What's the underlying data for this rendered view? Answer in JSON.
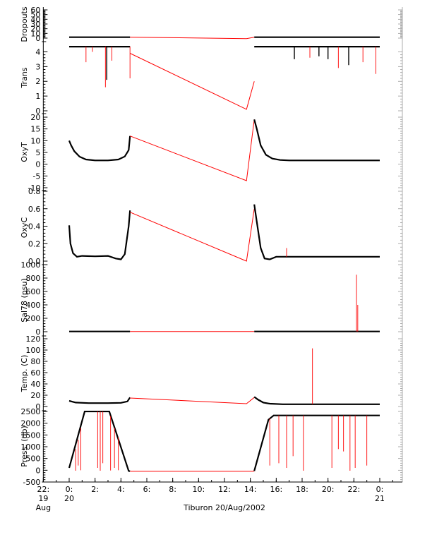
{
  "chart_data": {
    "type": "line",
    "xlabel": "Tiburon 20/Aug/2002",
    "x_range_hours": [
      -2,
      24
    ],
    "x_ticks": [
      {
        "h": -2,
        "lines": [
          "22:",
          "19",
          "Aug"
        ]
      },
      {
        "h": 0,
        "lines": [
          "0:",
          "20"
        ]
      },
      {
        "h": 2,
        "lines": [
          "2:"
        ]
      },
      {
        "h": 4,
        "lines": [
          "4:"
        ]
      },
      {
        "h": 6,
        "lines": [
          "6:"
        ]
      },
      {
        "h": 8,
        "lines": [
          "8:"
        ]
      },
      {
        "h": 10,
        "lines": [
          "10:"
        ]
      },
      {
        "h": 12,
        "lines": [
          "12:"
        ]
      },
      {
        "h": 14,
        "lines": [
          "14:"
        ]
      },
      {
        "h": 16,
        "lines": [
          "16:"
        ]
      },
      {
        "h": 18,
        "lines": [
          "18:"
        ]
      },
      {
        "h": 20,
        "lines": [
          "20:"
        ]
      },
      {
        "h": 22,
        "lines": [
          "22:"
        ]
      },
      {
        "h": 24,
        "lines": [
          "0:",
          "21"
        ]
      }
    ],
    "colors": {
      "data": "#000000",
      "gap": "#ff0000"
    },
    "panels": [
      {
        "ylabel": "Dropouts",
        "ylim": [
          0,
          60
        ],
        "yticks": [
          "60",
          "50",
          "40",
          "30",
          "20",
          "10",
          "0"
        ],
        "ytick_values": [
          60,
          50,
          40,
          30,
          20,
          10,
          0
        ],
        "segments": [
          {
            "color": "black",
            "points": [
              [
                0,
                2
              ],
              [
                4.7,
                2
              ]
            ]
          },
          {
            "color": "red",
            "points": [
              [
                4.7,
                2
              ],
              [
                13.7,
                -1
              ],
              [
                14.3,
                2
              ]
            ]
          },
          {
            "color": "black",
            "points": [
              [
                14.3,
                2
              ],
              [
                24,
                2
              ]
            ]
          }
        ],
        "spikes": []
      },
      {
        "ylabel": "Trans",
        "ylim": [
          0,
          4.5
        ],
        "yticks": [
          "4",
          "3",
          "2",
          "1",
          "0"
        ],
        "ytick_values": [
          4,
          3,
          2,
          1,
          0
        ],
        "segments": [
          {
            "color": "black",
            "points": [
              [
                0,
                4.35
              ],
              [
                4.7,
                4.35
              ]
            ]
          },
          {
            "color": "red",
            "points": [
              [
                4.7,
                3.9
              ],
              [
                13.7,
                0.1
              ],
              [
                14.3,
                2.0
              ]
            ]
          },
          {
            "color": "black",
            "points": [
              [
                14.3,
                4.35
              ],
              [
                24,
                4.35
              ]
            ]
          }
        ],
        "spikes": [
          {
            "x": 1.3,
            "y0": 4.35,
            "y1": 3.3,
            "color": "red"
          },
          {
            "x": 1.8,
            "y0": 4.35,
            "y1": 4.0,
            "color": "red"
          },
          {
            "x": 2.8,
            "y0": 4.35,
            "y1": 1.6,
            "color": "red"
          },
          {
            "x": 2.9,
            "y0": 4.35,
            "y1": 2.1,
            "color": "black"
          },
          {
            "x": 3.3,
            "y0": 4.35,
            "y1": 3.4,
            "color": "red"
          },
          {
            "x": 4.7,
            "y0": 4.35,
            "y1": 2.2,
            "color": "red"
          },
          {
            "x": 17.4,
            "y0": 4.35,
            "y1": 3.5,
            "color": "black"
          },
          {
            "x": 18.6,
            "y0": 4.35,
            "y1": 3.6,
            "color": "red"
          },
          {
            "x": 19.3,
            "y0": 4.35,
            "y1": 3.7,
            "color": "black"
          },
          {
            "x": 20.0,
            "y0": 4.35,
            "y1": 3.5,
            "color": "black"
          },
          {
            "x": 20.8,
            "y0": 4.35,
            "y1": 2.9,
            "color": "red"
          },
          {
            "x": 21.6,
            "y0": 4.35,
            "y1": 3.1,
            "color": "black"
          },
          {
            "x": 22.7,
            "y0": 4.35,
            "y1": 3.3,
            "color": "red"
          },
          {
            "x": 23.7,
            "y0": 4.35,
            "y1": 2.5,
            "color": "red"
          }
        ]
      },
      {
        "ylabel": "OxyT",
        "ylim": [
          -10,
          20
        ],
        "yticks": [
          "20",
          "15",
          "10",
          "5",
          "0",
          "-5",
          "-10"
        ],
        "ytick_values": [
          20,
          15,
          10,
          5,
          0,
          -5,
          -10
        ],
        "segments": [
          {
            "color": "black",
            "points": [
              [
                0,
                10
              ],
              [
                0.15,
                8
              ],
              [
                0.4,
                5.5
              ],
              [
                0.8,
                3.2
              ],
              [
                1.3,
                2
              ],
              [
                2,
                1.6
              ],
              [
                3,
                1.6
              ],
              [
                3.8,
                2
              ],
              [
                4.3,
                3.3
              ],
              [
                4.6,
                6
              ],
              [
                4.7,
                12
              ]
            ]
          },
          {
            "color": "red",
            "points": [
              [
                4.7,
                12
              ],
              [
                13.7,
                -7
              ],
              [
                14.3,
                19
              ]
            ]
          },
          {
            "color": "black",
            "points": [
              [
                14.3,
                19
              ],
              [
                14.5,
                15
              ],
              [
                14.8,
                8
              ],
              [
                15.2,
                4
              ],
              [
                15.7,
                2.4
              ],
              [
                16.3,
                1.8
              ],
              [
                17,
                1.6
              ],
              [
                24,
                1.6
              ]
            ]
          }
        ],
        "spikes": []
      },
      {
        "ylabel": "OxyC",
        "ylim": [
          0,
          0.8
        ],
        "yticks": [
          "0.8",
          "0.6",
          "0.4",
          "0.2",
          "0.0"
        ],
        "ytick_values": [
          0.8,
          0.6,
          0.4,
          0.2,
          0.0
        ],
        "segments": [
          {
            "color": "black",
            "points": [
              [
                0,
                0.41
              ],
              [
                0.1,
                0.2
              ],
              [
                0.3,
                0.09
              ],
              [
                0.6,
                0.05
              ],
              [
                1,
                0.06
              ],
              [
                2,
                0.055
              ],
              [
                3,
                0.06
              ],
              [
                3.6,
                0.03
              ],
              [
                4,
                0.02
              ],
              [
                4.3,
                0.08
              ],
              [
                4.6,
                0.4
              ],
              [
                4.7,
                0.58
              ]
            ]
          },
          {
            "color": "red",
            "points": [
              [
                4.7,
                0.56
              ],
              [
                13.7,
                0.0
              ],
              [
                14.3,
                0.6
              ]
            ]
          },
          {
            "color": "black",
            "points": [
              [
                14.3,
                0.65
              ],
              [
                14.5,
                0.45
              ],
              [
                14.8,
                0.15
              ],
              [
                15.1,
                0.03
              ],
              [
                15.5,
                0.02
              ],
              [
                16,
                0.05
              ],
              [
                24,
                0.05
              ]
            ]
          }
        ],
        "spikes": [
          {
            "x": 16.8,
            "y0": 0.05,
            "y1": 0.15,
            "color": "red"
          }
        ]
      },
      {
        "ylabel": "Sal78 (psu)",
        "ylim": [
          0,
          1000
        ],
        "yticks": [
          "1000",
          "800",
          "600",
          "400",
          "200",
          "0"
        ],
        "ytick_values": [
          1000,
          800,
          600,
          400,
          200,
          0
        ],
        "segments": [
          {
            "color": "black",
            "points": [
              [
                0,
                3
              ],
              [
                4.7,
                3
              ]
            ]
          },
          {
            "color": "red",
            "points": [
              [
                4.7,
                3
              ],
              [
                14.3,
                3
              ]
            ]
          },
          {
            "color": "black",
            "points": [
              [
                14.3,
                3
              ],
              [
                24,
                3
              ]
            ]
          }
        ],
        "spikes": [
          {
            "x": 22.2,
            "y0": 3,
            "y1": 850,
            "color": "red"
          },
          {
            "x": 22.3,
            "y0": 3,
            "y1": 400,
            "color": "red"
          }
        ]
      },
      {
        "ylabel": "Temp. (C)",
        "ylim": [
          0,
          120
        ],
        "yticks": [
          "120",
          "100",
          "80",
          "60",
          "40",
          "20",
          "0"
        ],
        "ytick_values": [
          120,
          100,
          80,
          60,
          40,
          20,
          0
        ],
        "segments": [
          {
            "color": "black",
            "points": [
              [
                0,
                10
              ],
              [
                0.5,
                7
              ],
              [
                1.5,
                6
              ],
              [
                3,
                6
              ],
              [
                4,
                6.5
              ],
              [
                4.5,
                9
              ],
              [
                4.7,
                16
              ]
            ]
          },
          {
            "color": "red",
            "points": [
              [
                4.7,
                15
              ],
              [
                13.7,
                5
              ],
              [
                14.3,
                16
              ]
            ]
          },
          {
            "color": "black",
            "points": [
              [
                14.3,
                17
              ],
              [
                14.6,
                12
              ],
              [
                15,
                7
              ],
              [
                15.5,
                5
              ],
              [
                16.5,
                4
              ],
              [
                24,
                4
              ]
            ]
          }
        ],
        "spikes": [
          {
            "x": 18.8,
            "y0": 4,
            "y1": 103,
            "color": "red"
          }
        ]
      },
      {
        "ylabel": "Press. (db)",
        "ylim": [
          -500,
          2500
        ],
        "yticks": [
          "2500",
          "2000",
          "1500",
          "1000",
          "500",
          "0",
          "-500"
        ],
        "ytick_values": [
          2500,
          2000,
          1500,
          1000,
          500,
          0,
          -500
        ],
        "segments": [
          {
            "color": "black",
            "points": [
              [
                0,
                100
              ],
              [
                1.2,
                2500
              ],
              [
                3.1,
                2500
              ],
              [
                4.6,
                -30
              ],
              [
                4.7,
                -40
              ]
            ]
          },
          {
            "color": "red",
            "points": [
              [
                4.7,
                -40
              ],
              [
                14.3,
                -40
              ]
            ]
          },
          {
            "color": "black",
            "points": [
              [
                14.3,
                -30
              ],
              [
                15.4,
                2150
              ],
              [
                15.8,
                2330
              ],
              [
                17,
                2330
              ],
              [
                24,
                2330
              ]
            ]
          }
        ],
        "spikes": [
          {
            "x": 0.5,
            "y0": 900,
            "y1": -20,
            "color": "red"
          },
          {
            "x": 0.7,
            "y0": 1300,
            "y1": 200,
            "color": "red"
          },
          {
            "x": 0.9,
            "y0": 1800,
            "y1": 0,
            "color": "red"
          },
          {
            "x": 2.2,
            "y0": 2500,
            "y1": 100,
            "color": "red"
          },
          {
            "x": 2.4,
            "y0": 2500,
            "y1": -20,
            "color": "red"
          },
          {
            "x": 2.6,
            "y0": 2500,
            "y1": 300,
            "color": "red"
          },
          {
            "x": 3.2,
            "y0": 2300,
            "y1": -10,
            "color": "red"
          },
          {
            "x": 3.5,
            "y0": 1800,
            "y1": 100,
            "color": "red"
          },
          {
            "x": 3.8,
            "y0": 1400,
            "y1": 0,
            "color": "red"
          },
          {
            "x": 15.5,
            "y0": 2200,
            "y1": 200,
            "color": "red"
          },
          {
            "x": 16.2,
            "y0": 2330,
            "y1": 300,
            "color": "red"
          },
          {
            "x": 16.8,
            "y0": 2330,
            "y1": 100,
            "color": "red"
          },
          {
            "x": 17.3,
            "y0": 2330,
            "y1": 600,
            "color": "red"
          },
          {
            "x": 18.1,
            "y0": 2330,
            "y1": -20,
            "color": "red"
          },
          {
            "x": 20.3,
            "y0": 2330,
            "y1": 100,
            "color": "red"
          },
          {
            "x": 20.8,
            "y0": 2330,
            "y1": 900,
            "color": "red"
          },
          {
            "x": 21.2,
            "y0": 2330,
            "y1": 800,
            "color": "red"
          },
          {
            "x": 21.7,
            "y0": 2330,
            "y1": -20,
            "color": "red"
          },
          {
            "x": 22.1,
            "y0": 2330,
            "y1": 100,
            "color": "red"
          },
          {
            "x": 23.0,
            "y0": 2330,
            "y1": 200,
            "color": "red"
          }
        ]
      }
    ]
  }
}
